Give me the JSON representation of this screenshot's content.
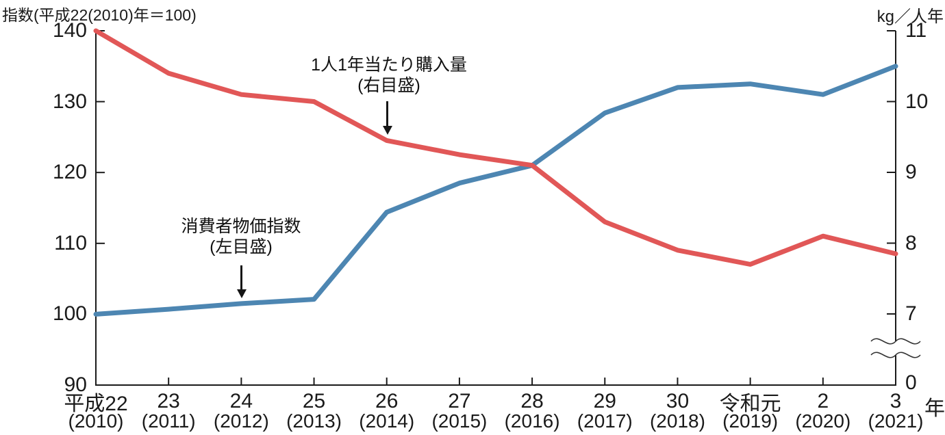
{
  "chart_data": {
    "type": "line",
    "x_axis_unit": "年",
    "categories_era": [
      "平成22",
      "23",
      "24",
      "25",
      "26",
      "27",
      "28",
      "29",
      "30",
      "令和元",
      "2",
      "3"
    ],
    "categories_year": [
      "(2010)",
      "(2011)",
      "(2012)",
      "(2013)",
      "(2014)",
      "(2015)",
      "(2016)",
      "(2017)",
      "(2018)",
      "(2019)",
      "(2020)",
      "(2021)"
    ],
    "left_axis": {
      "title": "指数(平成22(2010)年＝100)",
      "ticks": [
        140,
        130,
        120,
        110,
        100,
        90
      ],
      "range": [
        90,
        140
      ]
    },
    "right_axis": {
      "title": "kg／人年",
      "ticks": [
        11,
        10,
        9,
        8,
        7,
        0
      ],
      "range": [
        7,
        11
      ],
      "axis_break_below": 7
    },
    "series": [
      {
        "name": "消費者物価指数",
        "axis_note": "(左目盛)",
        "scale": "left",
        "color": "#4d86b2",
        "values": [
          100,
          100.7,
          101.5,
          102.1,
          114.4,
          118.5,
          121,
          128.4,
          132,
          132.5,
          131,
          135
        ]
      },
      {
        "name": "1人1年当たり購入量",
        "axis_note": "(右目盛)",
        "scale": "right",
        "color": "#e15757",
        "values": [
          11,
          10.4,
          10.1,
          10,
          9.45,
          9.25,
          9.1,
          8.3,
          7.9,
          7.7,
          8.1,
          7.85
        ]
      }
    ],
    "grid": "off",
    "legend": "in-chart annotations with arrows",
    "axis_color": "#1a1a1a"
  }
}
